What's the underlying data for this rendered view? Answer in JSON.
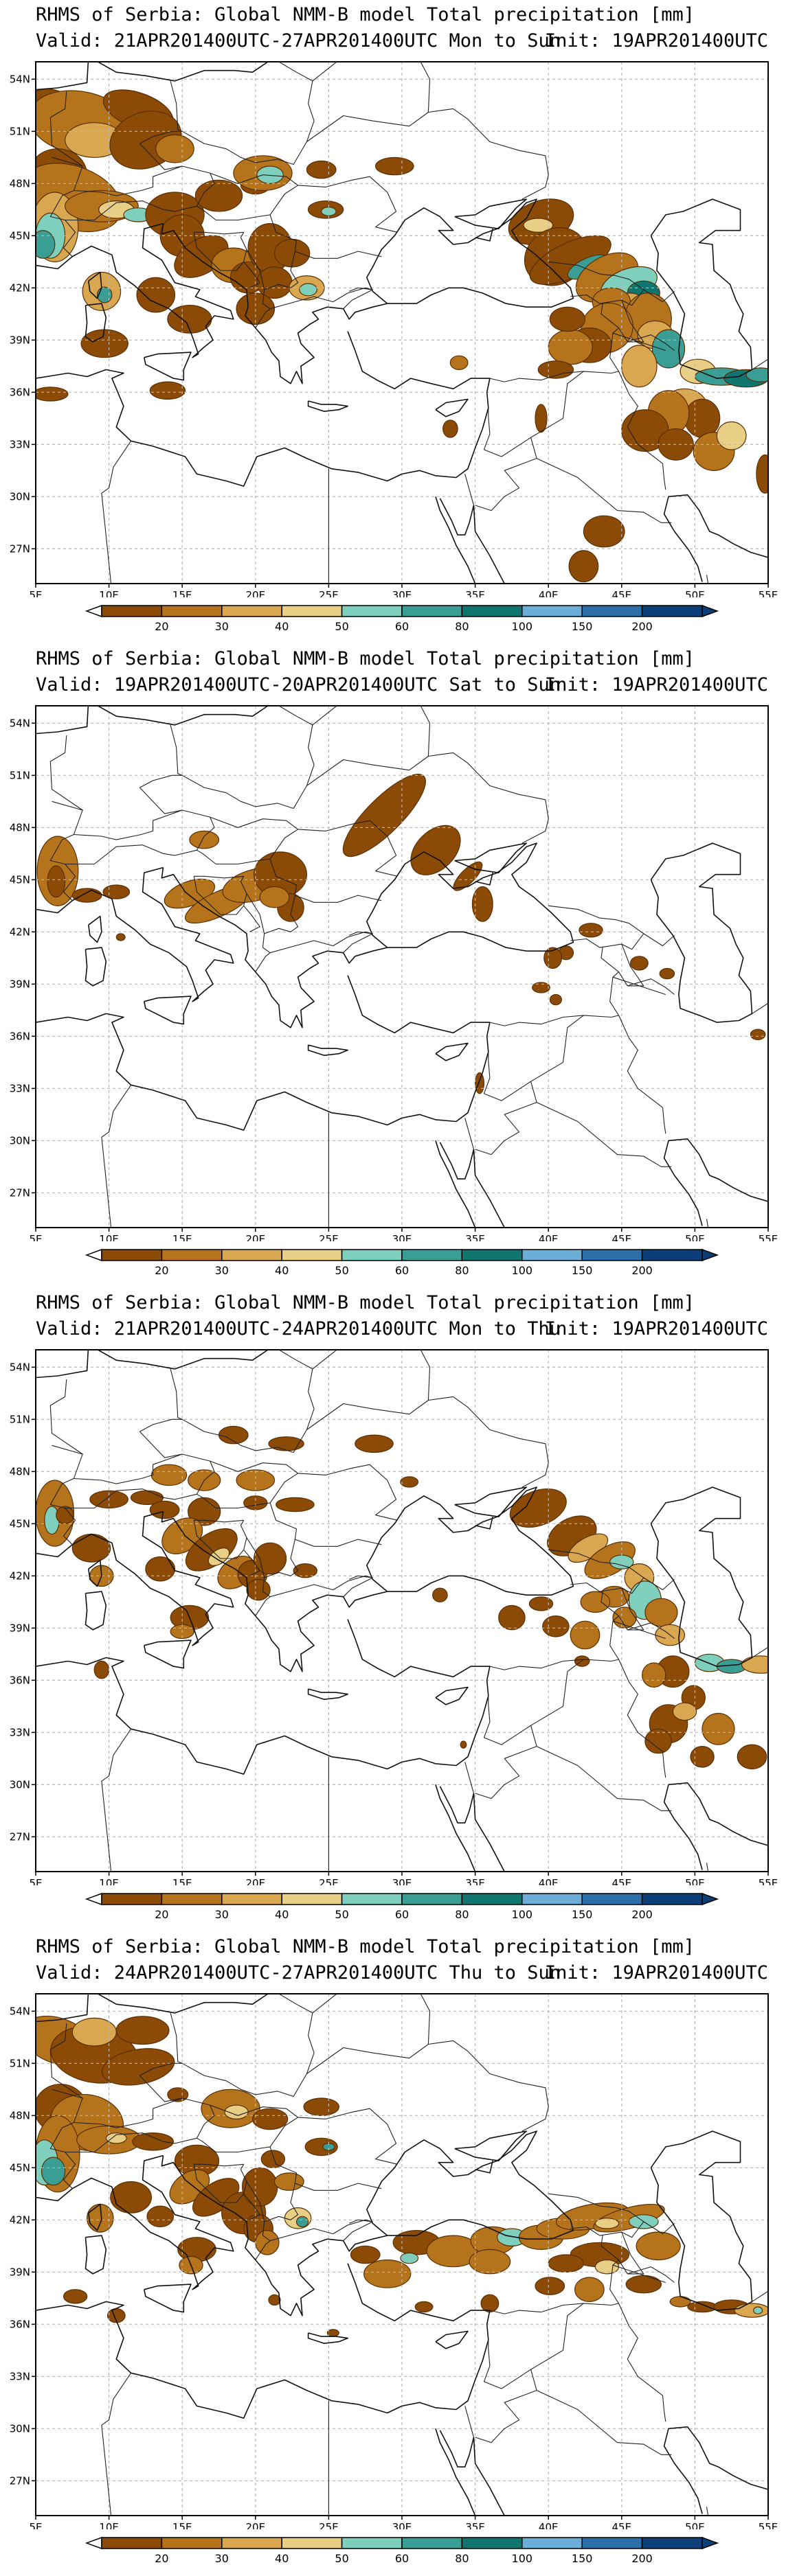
{
  "palette": [
    "#8b4a06",
    "#b5741c",
    "#d9a750",
    "#e9cf85",
    "#7fcfbd",
    "#3a9e94",
    "#10756e",
    "#6caed8",
    "#2b6ea8",
    "#0c3f78"
  ],
  "colorbar_labels": [
    "20",
    "30",
    "40",
    "50",
    "60",
    "80",
    "100",
    "150",
    "200"
  ],
  "lat_labels": [
    "54N",
    "51N",
    "48N",
    "45N",
    "42N",
    "39N",
    "36N",
    "33N",
    "30N",
    "27N"
  ],
  "lon_labels": [
    "5E",
    "10E",
    "15E",
    "20E",
    "25E",
    "30E",
    "35E",
    "40E",
    "45E",
    "50E",
    "55E"
  ],
  "panels": [
    {
      "title": "RHMS of Serbia: Global NMM-B model Total precipitation [mm]",
      "valid": "Valid: 21APR201400UTC-27APR201400UTC Mon to Sun",
      "init": "Init: 19APR201400UTC"
    },
    {
      "title": "RHMS of Serbia: Global NMM-B model Total precipitation [mm]",
      "valid": "Valid: 19APR201400UTC-20APR201400UTC Sat to Sun",
      "init": "Init: 19APR201400UTC"
    },
    {
      "title": "RHMS of Serbia: Global NMM-B model Total precipitation [mm]",
      "valid": "Valid: 21APR201400UTC-24APR201400UTC Mon to Thu",
      "init": "Init: 19APR201400UTC"
    },
    {
      "title": "RHMS of Serbia: Global NMM-B model Total precipitation [mm]",
      "valid": "Valid: 24APR201400UTC-27APR201400UTC Thu to Sun",
      "init": "Init: 19APR201400UTC"
    }
  ]
}
